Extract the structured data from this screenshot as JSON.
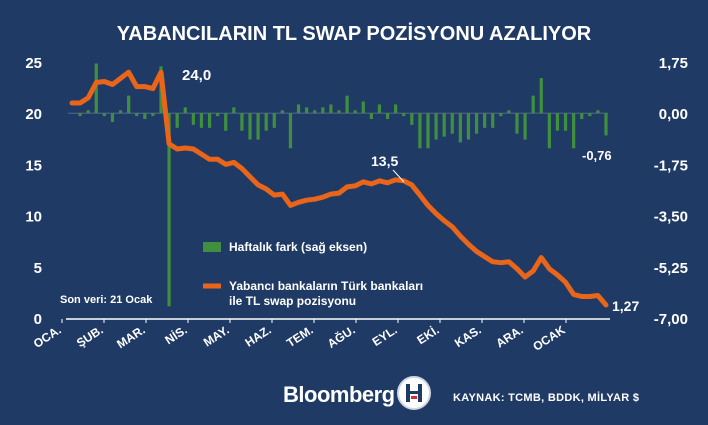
{
  "chart_data": {
    "type": "bar+line",
    "title": "YABANCILARIN TL SWAP POZİSYONU AZALIYOR",
    "months": [
      "OCA.",
      "ŞUB.",
      "MAR.",
      "NİS.",
      "MAY.",
      "HAZ.",
      "TEM.",
      "AĞU.",
      "EYL.",
      "EKİ.",
      "KAS.",
      "ARA.",
      "OCAK"
    ],
    "left_axis": {
      "min": 0,
      "max": 25,
      "ticks": [
        "0",
        "5",
        "10",
        "15",
        "20",
        "25"
      ]
    },
    "right_axis": {
      "min": -7.0,
      "max": 1.75,
      "ticks": [
        "-7,00",
        "-5,25",
        "-3,50",
        "-1,75",
        "0,00",
        "1,75"
      ]
    },
    "series": [
      {
        "name": "Yabancı bankaların Türk bankaları ile TL swap pozisyonu",
        "axis": "left",
        "color": "#e8651a",
        "values": [
          21.0,
          21.0,
          21.5,
          23.0,
          23.1,
          22.8,
          23.4,
          24.0,
          22.6,
          22.6,
          22.4,
          24.0,
          17.0,
          16.5,
          16.6,
          16.5,
          16.0,
          15.5,
          15.5,
          15.0,
          15.2,
          14.6,
          13.8,
          13.0,
          12.6,
          12.0,
          12.1,
          11.0,
          11.3,
          11.5,
          11.6,
          11.8,
          12.1,
          12.2,
          12.8,
          12.9,
          13.3,
          13.1,
          13.4,
          13.2,
          13.5,
          13.4,
          13.0,
          12.0,
          11.0,
          10.2,
          9.5,
          8.9,
          8.0,
          7.2,
          6.5,
          6.0,
          5.5,
          5.4,
          5.5,
          4.8,
          4.0,
          4.6,
          5.9,
          4.8,
          4.2,
          3.5,
          2.3,
          2.1,
          2.1,
          2.2,
          1.27
        ]
      },
      {
        "name": "Haftalık fark (sağ eksen)",
        "axis": "right",
        "color": "#3f8f3f",
        "values": [
          0,
          -0.1,
          0.1,
          1.7,
          -0.1,
          -0.3,
          0.1,
          0.6,
          -0.1,
          -0.2,
          -0.1,
          1.6,
          -6.6,
          -0.5,
          0.2,
          -0.4,
          -0.5,
          -0.5,
          -0.1,
          -0.6,
          0.2,
          -0.6,
          -0.9,
          -0.9,
          -0.6,
          -0.5,
          0.1,
          -1.2,
          0.3,
          0.2,
          0.1,
          0.2,
          0.3,
          0.1,
          0.6,
          0.1,
          0.4,
          -0.2,
          0.3,
          -0.2,
          0.3,
          -0.1,
          -0.4,
          -1.2,
          -1.2,
          -0.9,
          -0.8,
          -0.7,
          -1.0,
          -0.9,
          -0.7,
          -0.5,
          -0.5,
          -0.1,
          0.1,
          -0.7,
          -0.9,
          0.6,
          1.2,
          -1.2,
          -0.6,
          -0.6,
          -1.2,
          -0.2,
          -0.1,
          0.1,
          -0.76
        ]
      }
    ],
    "annotations": [
      {
        "text": "24,0"
      },
      {
        "text": "13,5"
      },
      {
        "text": "-0,76"
      },
      {
        "text": "1,27"
      },
      {
        "text": "Son veri: 21 Ocak"
      }
    ],
    "legend_labels": {
      "bar": "Haftalık fark (sağ eksen)",
      "line_1": "Yabancı bankaların Türk bankaları",
      "line_2": "ile TL swap pozisyonu"
    },
    "grid": false,
    "legend_position": "center"
  },
  "footer": {
    "brand": "Bloomberg",
    "source": "KAYNAK: TCMB, BDDK, MİLYAR $",
    "colors": {
      "background": "#1f3a64",
      "text": "#ffffff"
    }
  }
}
